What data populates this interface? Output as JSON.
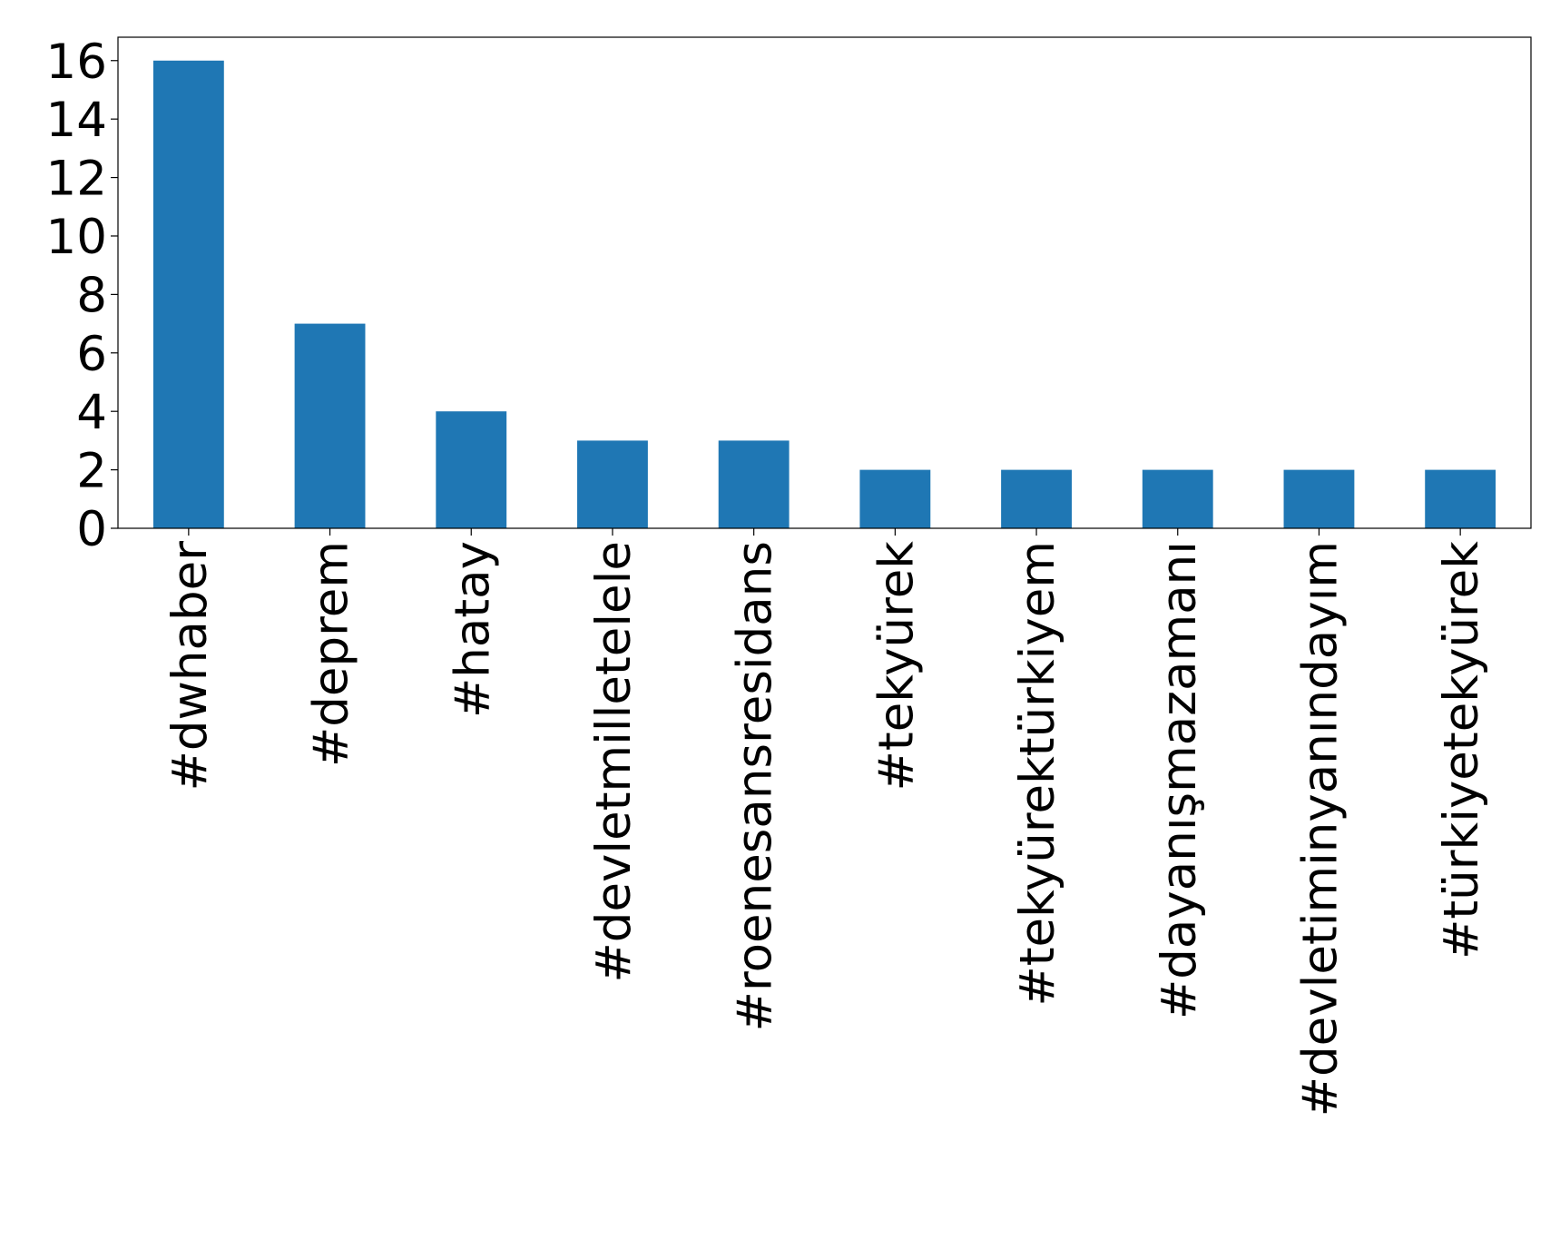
{
  "chart_data": {
    "type": "bar",
    "categories": [
      "#dwhaber",
      "#deprem",
      "#hatay",
      "#devletmilletelele",
      "#roenesansresidans",
      "#tekyürek",
      "#tekyürektürkiyem",
      "#dayanışmazamanı",
      "#devletiminyanındayım",
      "#türkiyetekyürek"
    ],
    "values": [
      16,
      7,
      4,
      3,
      3,
      2,
      2,
      2,
      2,
      2
    ],
    "color": "#1f77b4",
    "ylim": [
      0,
      16.8
    ],
    "yticks": [
      0,
      2,
      4,
      6,
      8,
      10,
      12,
      14,
      16
    ],
    "grid": false
  }
}
